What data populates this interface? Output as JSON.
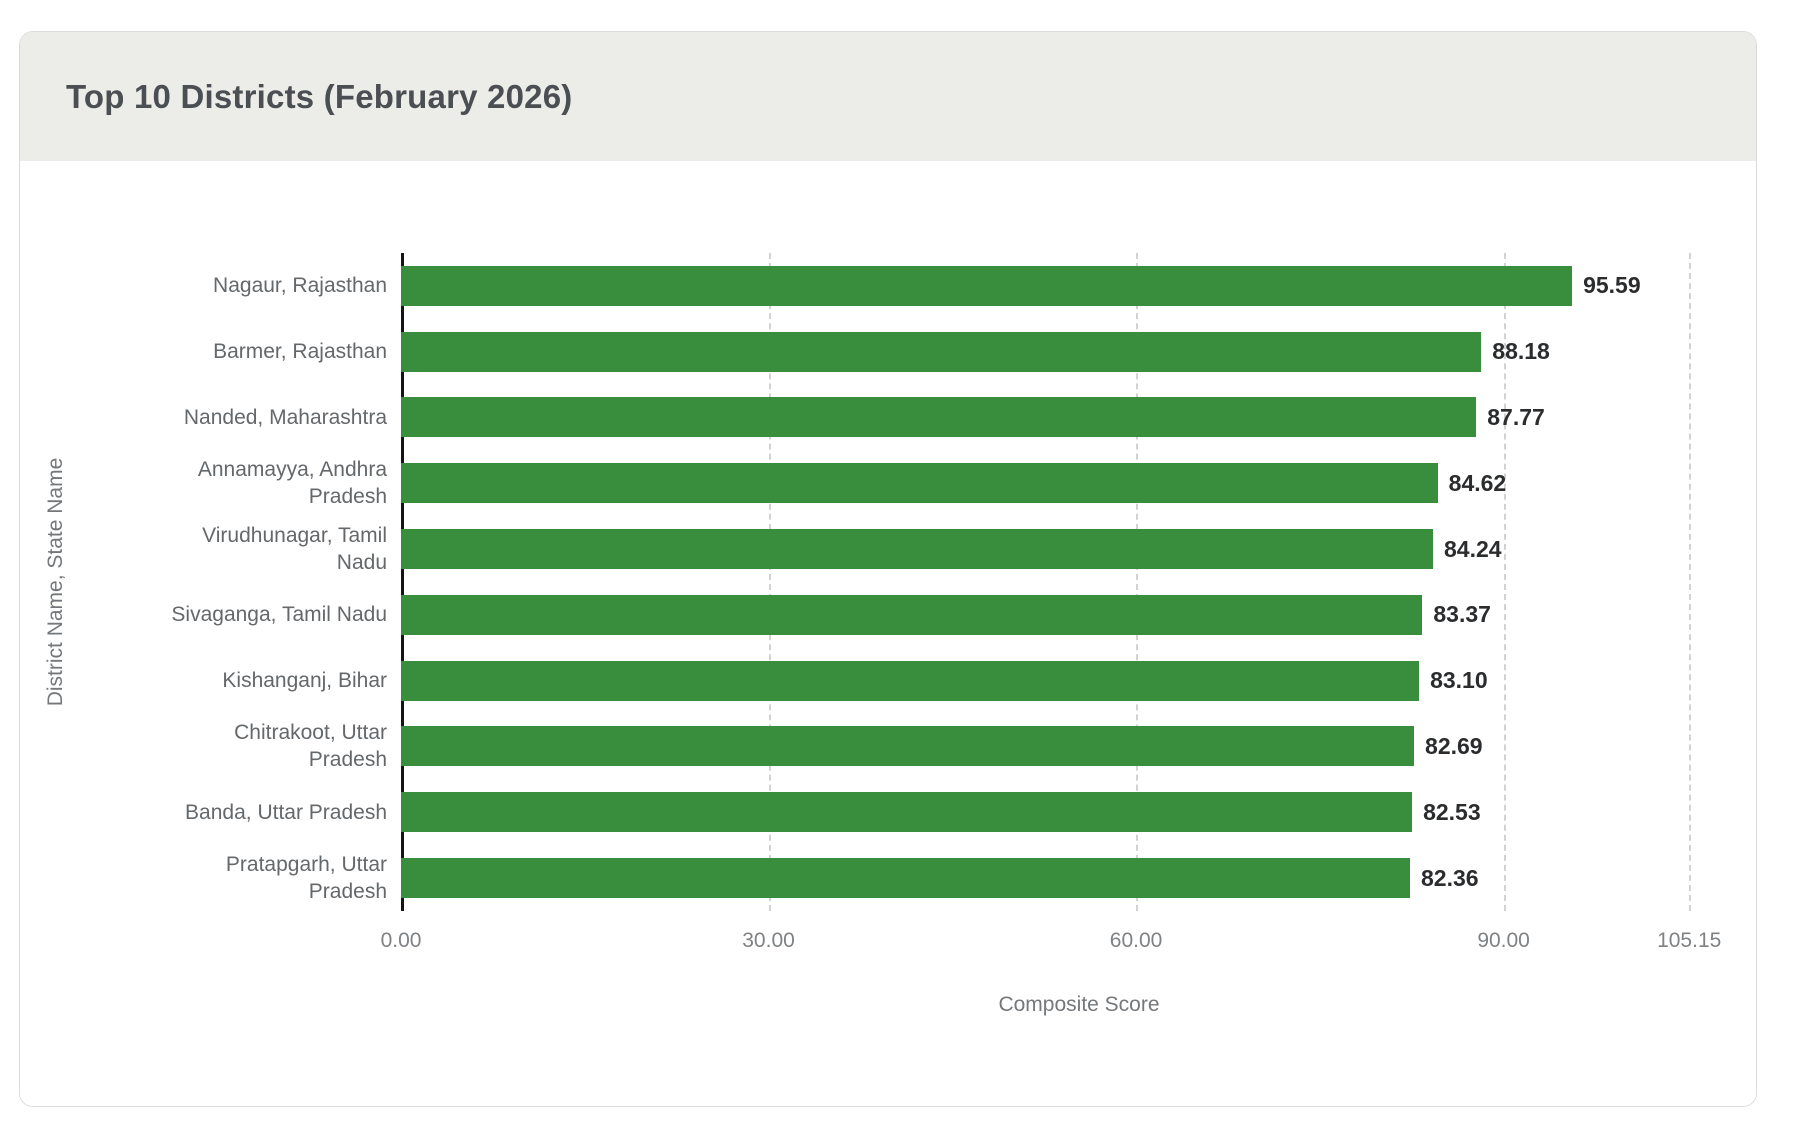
{
  "page_title": "Top 10 Districts (February 2026)",
  "chart_data": {
    "type": "bar",
    "orientation": "horizontal",
    "title": "Top 10 Districts (February 2026)",
    "xlabel": "Composite Score",
    "ylabel": "District Name, State Name",
    "categories": [
      "Nagaur, Rajasthan",
      "Barmer, Rajasthan",
      "Nanded, Maharashtra",
      "Annamayya, Andhra Pradesh",
      "Virudhunagar, Tamil Nadu",
      "Sivaganga, Tamil Nadu",
      "Kishanganj, Bihar",
      "Chitrakoot, Uttar Pradesh",
      "Banda, Uttar Pradesh",
      "Pratapgarh, Uttar Pradesh"
    ],
    "values": [
      95.59,
      88.18,
      87.77,
      84.62,
      84.24,
      83.37,
      83.1,
      82.69,
      82.53,
      82.36
    ],
    "value_labels": [
      "95.59",
      "88.18",
      "87.77",
      "84.62",
      "84.24",
      "83.37",
      "83.10",
      "82.69",
      "82.53",
      "82.36"
    ],
    "xlim": [
      0,
      105.15
    ],
    "x_ticks": [
      0,
      30,
      60,
      90,
      105.15
    ],
    "x_tick_labels": [
      "0.00",
      "30.00",
      "60.00",
      "90.00",
      "105.15"
    ],
    "grid": "vertical dashed gridlines at x ticks",
    "legend": "none",
    "bar_color": "#388E3C",
    "layout": {
      "max_tick_pct": 95
    }
  },
  "colors": {
    "bar": "#388E3C",
    "header_bg": "#ECEDE8",
    "card_border": "#DBDBDB",
    "title_text": "#4B4F53",
    "category_text": "#64686B",
    "value_text": "#2A2C2E",
    "tick_text": "#7F8285",
    "axis_title_text": "#75787B",
    "gridline": "#D2D2D2",
    "axis_line": "#141414"
  }
}
